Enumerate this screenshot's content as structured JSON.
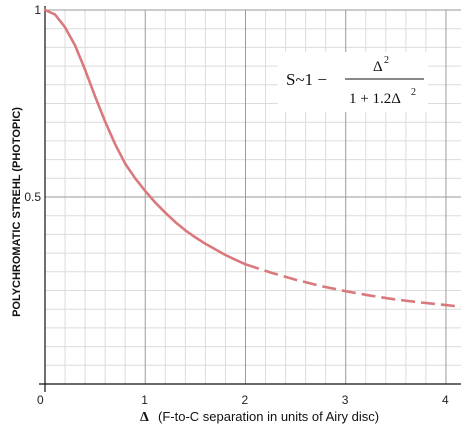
{
  "chart_data": {
    "type": "line",
    "xlabel_symbol": "Δ",
    "xlabel": "(F-to-C separation in units of Airy disc)",
    "ylabel": "POLYCHROMATIC STREHL (PHOTOPIC)",
    "x_ticks": [
      "0",
      "1",
      "2",
      "3",
      "4"
    ],
    "y_ticks": [
      "1",
      "0.5"
    ],
    "xlim": [
      0,
      4.15
    ],
    "ylim": [
      0,
      1
    ],
    "grid": true,
    "series": [
      {
        "color": "#d9797c",
        "solid_x": [
          0,
          0.1,
          0.2,
          0.3,
          0.4,
          0.5,
          0.6,
          0.7,
          0.8,
          0.9,
          1.0,
          1.1,
          1.2,
          1.3,
          1.4,
          1.5,
          1.6,
          1.7,
          1.8,
          1.9,
          2.0
        ],
        "solid_y": [
          1.0,
          0.988,
          0.954,
          0.905,
          0.84,
          0.769,
          0.702,
          0.641,
          0.589,
          0.55,
          0.516,
          0.485,
          0.458,
          0.433,
          0.411,
          0.392,
          0.375,
          0.36,
          0.345,
          0.332,
          0.32
        ],
        "dashed_x": [
          2.0,
          2.25,
          2.5,
          2.75,
          3.0,
          3.25,
          3.5,
          3.75,
          4.0,
          4.15
        ],
        "dashed_y": [
          0.32,
          0.298,
          0.279,
          0.262,
          0.248,
          0.236,
          0.226,
          0.218,
          0.211,
          0.207
        ]
      }
    ]
  },
  "formula": {
    "lhs": "S~1 −",
    "numerator": "Δ",
    "numerator_exp": "2",
    "denominator": "1 + 1.2Δ",
    "denominator_exp": "2"
  }
}
